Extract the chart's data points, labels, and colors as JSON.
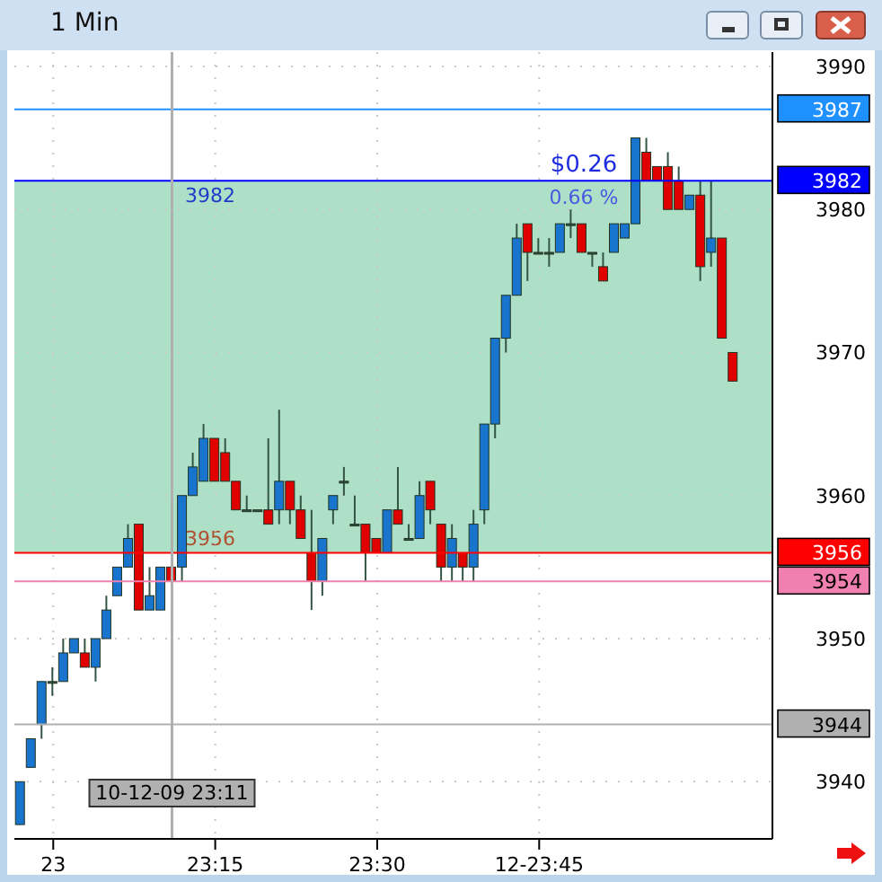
{
  "chart_data": {
    "type": "candlestick",
    "title": "1 Min",
    "x": [
      22.95,
      22.9667,
      22.9833,
      23,
      23.0167,
      23.0333,
      23.05,
      23.0667,
      23.0833,
      23.1,
      23.1167,
      23.1333,
      23.15,
      23.1667,
      23.1833,
      23.2,
      23.2167,
      23.2333,
      23.25,
      23.2667,
      23.2833,
      23.3,
      23.3167,
      23.3333,
      23.35,
      23.3667,
      23.3833,
      23.4,
      23.4167,
      23.4333,
      23.45,
      23.4667,
      23.4833,
      23.5,
      23.5167,
      23.5333,
      23.55,
      23.5667,
      23.5833,
      23.6,
      23.6167,
      23.6333,
      23.65,
      23.6667,
      23.6833,
      23.7,
      23.7167,
      23.7333,
      23.75,
      23.7667,
      23.7833,
      23.8,
      23.8167,
      23.8333,
      23.85,
      23.8667,
      23.8833,
      23.9,
      23.9167,
      23.9333,
      23.95,
      23.9667,
      23.9833,
      24,
      24.0167,
      24.0333,
      24.05
    ],
    "ohlc": [
      [
        3937,
        3940,
        3937,
        3940
      ],
      [
        3941,
        3943,
        3941,
        3943
      ],
      [
        3944,
        3947,
        3943,
        3947
      ],
      [
        3947,
        3948,
        3946,
        3947
      ],
      [
        3947,
        3950,
        3947,
        3949
      ],
      [
        3949,
        3950,
        3949,
        3950
      ],
      [
        3949,
        3950,
        3948,
        3948
      ],
      [
        3948,
        3950,
        3947,
        3950
      ],
      [
        3950,
        3953,
        3950,
        3952
      ],
      [
        3953,
        3955,
        3953,
        3955
      ],
      [
        3955,
        3958,
        3955,
        3957
      ],
      [
        3958,
        3958,
        3952,
        3952
      ],
      [
        3952,
        3955,
        3952,
        3953
      ],
      [
        3952,
        3955,
        3952,
        3955
      ],
      [
        3955,
        3955,
        3954,
        3954
      ],
      [
        3955,
        3960,
        3954,
        3960
      ],
      [
        3960,
        3963,
        3960,
        3962
      ],
      [
        3961,
        3965,
        3961,
        3964
      ],
      [
        3964,
        3964,
        3961,
        3961
      ],
      [
        3963,
        3964,
        3961,
        3961
      ],
      [
        3961,
        3961,
        3959,
        3959
      ],
      [
        3959,
        3960,
        3959,
        3959
      ],
      [
        3959,
        3959,
        3959,
        3959
      ],
      [
        3959,
        3964,
        3958,
        3958
      ],
      [
        3959,
        3966,
        3958,
        3961
      ],
      [
        3961,
        3961,
        3958,
        3959
      ],
      [
        3959,
        3960,
        3957,
        3957
      ],
      [
        3956,
        3959,
        3952,
        3954
      ],
      [
        3954,
        3957,
        3953,
        3957
      ],
      [
        3959,
        3960,
        3958,
        3960
      ],
      [
        3961,
        3962,
        3960,
        3961
      ],
      [
        3958,
        3960,
        3958,
        3958
      ],
      [
        3958,
        3958,
        3954,
        3956
      ],
      [
        3957,
        3957,
        3956,
        3956
      ],
      [
        3956,
        3959,
        3956,
        3959
      ],
      [
        3959,
        3962,
        3958,
        3958
      ],
      [
        3957,
        3958,
        3957,
        3957
      ],
      [
        3957,
        3961,
        3957,
        3960
      ],
      [
        3961,
        3961,
        3958,
        3959
      ],
      [
        3958,
        3958,
        3954,
        3955
      ],
      [
        3955,
        3958,
        3954,
        3957
      ],
      [
        3956,
        3956,
        3954,
        3955
      ],
      [
        3955,
        3959,
        3954,
        3958
      ],
      [
        3959,
        3965,
        3958,
        3965
      ],
      [
        3965,
        3971,
        3964,
        3971
      ],
      [
        3971,
        3974,
        3970,
        3974
      ],
      [
        3974,
        3979,
        3974,
        3978
      ],
      [
        3979,
        3979,
        3975,
        3977
      ],
      [
        3977,
        3978,
        3977,
        3977
      ],
      [
        3977,
        3978,
        3976,
        3977
      ],
      [
        3977,
        3979,
        3977,
        3979
      ],
      [
        3979,
        3980,
        3978,
        3979
      ],
      [
        3979,
        3979,
        3977,
        3977
      ],
      [
        3977,
        3977,
        3976,
        3977
      ],
      [
        3976,
        3977,
        3975,
        3975
      ],
      [
        3977,
        3979,
        3977,
        3979
      ],
      [
        3978,
        3979,
        3978,
        3979
      ],
      [
        3979,
        3985,
        3979,
        3985
      ],
      [
        3984,
        3985,
        3982,
        3982
      ],
      [
        3983,
        3983,
        3982,
        3982
      ],
      [
        3983,
        3984,
        3980,
        3980
      ],
      [
        3982,
        3983,
        3980,
        3980
      ],
      [
        3980,
        3981,
        3980,
        3981
      ],
      [
        3981,
        3982,
        3975,
        3976
      ],
      [
        3977,
        3982,
        3976,
        3978
      ],
      [
        3978,
        3978,
        3971,
        3971
      ],
      [
        3970,
        3970,
        3968,
        3968
      ]
    ],
    "colors": [
      "#1874cd",
      "#1874cd",
      "#1874cd",
      "#335544",
      "#1874cd",
      "#1874cd",
      "#e00000",
      "#1874cd",
      "#1874cd",
      "#1874cd",
      "#1874cd",
      "#e00000",
      "#1874cd",
      "#1874cd",
      "#e00000",
      "#1874cd",
      "#1874cd",
      "#1874cd",
      "#e00000",
      "#e00000",
      "#e00000",
      "#335544",
      "#335544",
      "#e00000",
      "#1874cd",
      "#e00000",
      "#e00000",
      "#e00000",
      "#1874cd",
      "#1874cd",
      "#335544",
      "#335544",
      "#e00000",
      "#e00000",
      "#1874cd",
      "#e00000",
      "#335544",
      "#1874cd",
      "#e00000",
      "#e00000",
      "#1874cd",
      "#e00000",
      "#1874cd",
      "#1874cd",
      "#1874cd",
      "#1874cd",
      "#1874cd",
      "#e00000",
      "#335544",
      "#335544",
      "#1874cd",
      "#335544",
      "#e00000",
      "#335544",
      "#e00000",
      "#1874cd",
      "#1874cd",
      "#1874cd",
      "#e00000",
      "#e00000",
      "#e00000",
      "#e00000",
      "#1874cd",
      "#e00000",
      "#1874cd",
      "#e00000",
      "#e00000"
    ],
    "xlim": [
      22.94,
      24.11
    ],
    "xticks": [
      {
        "value": 23,
        "label": "23"
      },
      {
        "value": 23.25,
        "label": "23:15"
      },
      {
        "value": 23.5,
        "label": "23:30"
      },
      {
        "value": 23.75,
        "label": "12-23:45"
      }
    ],
    "ylim": [
      3936,
      3991
    ],
    "yticks": [
      3940,
      3950,
      3960,
      3970,
      3980,
      3990
    ],
    "grid": true,
    "ref_lines": [
      {
        "axis": "y",
        "value": 3987,
        "label": "3987",
        "color": "#1e90ff"
      },
      {
        "axis": "y",
        "value": 3982,
        "label": "3982",
        "color": "#0000ff"
      },
      {
        "axis": "y",
        "value": 3956,
        "label": "3956",
        "color": "#ff0000"
      },
      {
        "axis": "y",
        "value": 3954,
        "label": "3954",
        "color": "#f080b0"
      },
      {
        "axis": "y",
        "value": 3944,
        "label": "3944",
        "color": "#b0b0b0"
      },
      {
        "axis": "x",
        "value": 23.1833,
        "label": "10-12-09 23:11",
        "color": "#b0b0b0"
      }
    ],
    "bands": [
      {
        "axis": "y",
        "from": 3956,
        "to": 3982,
        "color": "#aee0c8"
      }
    ],
    "annotations": [
      "3982",
      "3956",
      "$0.26",
      "0.66 %"
    ]
  }
}
